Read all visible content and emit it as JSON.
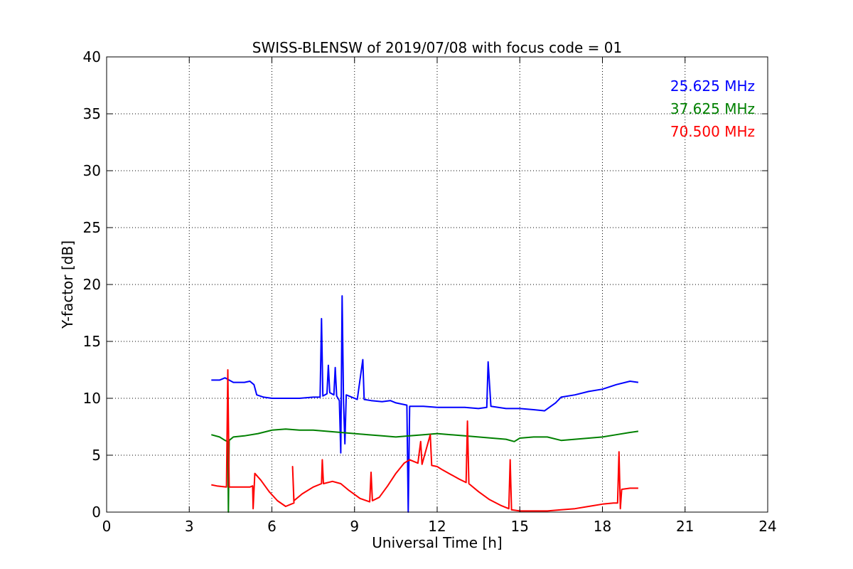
{
  "chart_data": {
    "type": "line",
    "title": "SWISS-BLENSW of 2019/07/08 with focus code = 01",
    "xlabel": "Universal Time [h]",
    "ylabel": "Y-factor [dB]",
    "xlim": [
      0,
      24
    ],
    "ylim": [
      0,
      40
    ],
    "xticks": [
      0,
      3,
      6,
      9,
      12,
      15,
      18,
      21,
      24
    ],
    "yticks": [
      0,
      5,
      10,
      15,
      20,
      25,
      30,
      35,
      40
    ],
    "grid": true,
    "legend_placement": "top-right",
    "series": [
      {
        "name": "25.625 MHz",
        "color": "#0000ff",
        "points": [
          [
            3.8,
            11.6
          ],
          [
            4.1,
            11.6
          ],
          [
            4.3,
            11.8
          ],
          [
            4.6,
            11.4
          ],
          [
            5.0,
            11.4
          ],
          [
            5.2,
            11.5
          ],
          [
            5.35,
            11.2
          ],
          [
            5.45,
            10.3
          ],
          [
            5.7,
            10.1
          ],
          [
            6.0,
            10.0
          ],
          [
            6.5,
            10.0
          ],
          [
            7.0,
            10.0
          ],
          [
            7.5,
            10.1
          ],
          [
            7.75,
            10.1
          ],
          [
            7.8,
            17.0
          ],
          [
            7.85,
            10.2
          ],
          [
            8.0,
            10.4
          ],
          [
            8.05,
            12.9
          ],
          [
            8.1,
            10.5
          ],
          [
            8.25,
            10.3
          ],
          [
            8.3,
            12.7
          ],
          [
            8.35,
            10.2
          ],
          [
            8.45,
            9.8
          ],
          [
            8.5,
            5.2
          ],
          [
            8.55,
            19.0
          ],
          [
            8.6,
            9.6
          ],
          [
            8.65,
            6.0
          ],
          [
            8.7,
            10.3
          ],
          [
            8.9,
            10.1
          ],
          [
            9.1,
            9.9
          ],
          [
            9.3,
            13.4
          ],
          [
            9.35,
            9.9
          ],
          [
            9.6,
            9.8
          ],
          [
            10.0,
            9.7
          ],
          [
            10.3,
            9.8
          ],
          [
            10.5,
            9.6
          ],
          [
            10.9,
            9.4
          ],
          [
            10.95,
            0.0
          ],
          [
            11.0,
            9.3
          ],
          [
            11.5,
            9.3
          ],
          [
            12.0,
            9.2
          ],
          [
            12.5,
            9.2
          ],
          [
            13.0,
            9.2
          ],
          [
            13.5,
            9.1
          ],
          [
            13.8,
            9.2
          ],
          [
            13.85,
            13.2
          ],
          [
            13.95,
            9.3
          ],
          [
            14.5,
            9.1
          ],
          [
            15.0,
            9.1
          ],
          [
            15.5,
            9.0
          ],
          [
            15.9,
            8.9
          ],
          [
            16.3,
            9.6
          ],
          [
            16.5,
            10.1
          ],
          [
            17.0,
            10.3
          ],
          [
            17.5,
            10.6
          ],
          [
            18.0,
            10.8
          ],
          [
            18.5,
            11.2
          ],
          [
            19.0,
            11.5
          ],
          [
            19.3,
            11.4
          ]
        ]
      },
      {
        "name": "37.625 MHz",
        "color": "#008000",
        "points": [
          [
            3.8,
            6.8
          ],
          [
            4.1,
            6.6
          ],
          [
            4.3,
            6.3
          ],
          [
            4.4,
            6.2
          ],
          [
            4.42,
            0.0
          ],
          [
            4.45,
            6.3
          ],
          [
            4.6,
            6.6
          ],
          [
            5.0,
            6.7
          ],
          [
            5.5,
            6.9
          ],
          [
            6.0,
            7.2
          ],
          [
            6.5,
            7.3
          ],
          [
            7.0,
            7.2
          ],
          [
            7.5,
            7.2
          ],
          [
            8.0,
            7.1
          ],
          [
            8.5,
            7.0
          ],
          [
            9.0,
            6.9
          ],
          [
            9.5,
            6.8
          ],
          [
            10.0,
            6.7
          ],
          [
            10.5,
            6.6
          ],
          [
            11.0,
            6.7
          ],
          [
            11.5,
            6.8
          ],
          [
            12.0,
            6.9
          ],
          [
            12.5,
            6.8
          ],
          [
            13.0,
            6.7
          ],
          [
            13.5,
            6.6
          ],
          [
            14.0,
            6.5
          ],
          [
            14.5,
            6.4
          ],
          [
            14.8,
            6.2
          ],
          [
            15.0,
            6.5
          ],
          [
            15.5,
            6.6
          ],
          [
            16.0,
            6.6
          ],
          [
            16.5,
            6.3
          ],
          [
            17.0,
            6.4
          ],
          [
            17.5,
            6.5
          ],
          [
            18.0,
            6.6
          ],
          [
            18.5,
            6.8
          ],
          [
            19.0,
            7.0
          ],
          [
            19.3,
            7.1
          ]
        ]
      },
      {
        "name": "70.500 MHz",
        "color": "#ff0000",
        "points": [
          [
            3.8,
            2.4
          ],
          [
            4.0,
            2.3
          ],
          [
            4.35,
            2.2
          ],
          [
            4.4,
            12.5
          ],
          [
            4.45,
            2.2
          ],
          [
            4.6,
            2.2
          ],
          [
            4.9,
            2.2
          ],
          [
            5.2,
            2.2
          ],
          [
            5.3,
            2.3
          ],
          [
            5.32,
            0.3
          ],
          [
            5.38,
            3.4
          ],
          [
            5.6,
            2.8
          ],
          [
            5.9,
            1.8
          ],
          [
            6.2,
            1.0
          ],
          [
            6.5,
            0.5
          ],
          [
            6.8,
            0.8
          ],
          [
            6.75,
            4.0
          ],
          [
            6.8,
            1.0
          ],
          [
            7.1,
            1.6
          ],
          [
            7.5,
            2.2
          ],
          [
            7.8,
            2.5
          ],
          [
            7.83,
            4.6
          ],
          [
            7.87,
            2.5
          ],
          [
            8.2,
            2.7
          ],
          [
            8.5,
            2.5
          ],
          [
            8.8,
            1.9
          ],
          [
            9.2,
            1.2
          ],
          [
            9.55,
            0.9
          ],
          [
            9.6,
            3.5
          ],
          [
            9.65,
            1.0
          ],
          [
            9.9,
            1.3
          ],
          [
            10.2,
            2.3
          ],
          [
            10.5,
            3.4
          ],
          [
            10.8,
            4.3
          ],
          [
            11.0,
            4.6
          ],
          [
            11.3,
            4.3
          ],
          [
            11.4,
            6.2
          ],
          [
            11.45,
            4.2
          ],
          [
            11.75,
            6.8
          ],
          [
            11.8,
            4.1
          ],
          [
            12.0,
            4.0
          ],
          [
            12.2,
            3.7
          ],
          [
            12.5,
            3.3
          ],
          [
            12.8,
            2.9
          ],
          [
            13.05,
            2.6
          ],
          [
            13.1,
            8.0
          ],
          [
            13.15,
            2.5
          ],
          [
            13.5,
            1.8
          ],
          [
            13.9,
            1.1
          ],
          [
            14.3,
            0.6
          ],
          [
            14.6,
            0.3
          ],
          [
            14.65,
            4.6
          ],
          [
            14.7,
            0.2
          ],
          [
            15.0,
            0.1
          ],
          [
            15.5,
            0.1
          ],
          [
            16.0,
            0.1
          ],
          [
            16.5,
            0.2
          ],
          [
            17.0,
            0.3
          ],
          [
            17.5,
            0.5
          ],
          [
            18.0,
            0.7
          ],
          [
            18.4,
            0.8
          ],
          [
            18.55,
            0.8
          ],
          [
            18.6,
            5.3
          ],
          [
            18.65,
            0.3
          ],
          [
            18.7,
            2.0
          ],
          [
            19.0,
            2.1
          ],
          [
            19.3,
            2.1
          ]
        ]
      }
    ]
  }
}
